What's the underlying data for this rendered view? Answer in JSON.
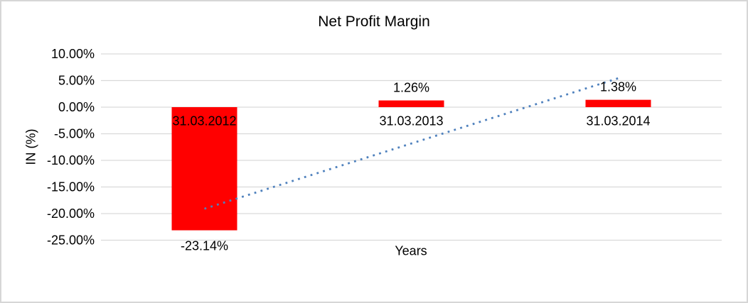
{
  "chart_data": {
    "type": "bar",
    "title": "Net Profit Margin",
    "xlabel": "Years",
    "ylabel": "IN (%)",
    "categories": [
      "31.03.2012",
      "31.03.2013",
      "31.03.2014"
    ],
    "values": [
      -23.14,
      1.26,
      1.38
    ],
    "data_labels": [
      "-23.14%",
      "1.26%",
      "1.38%"
    ],
    "ylim": [
      -25,
      10
    ],
    "yticks": [
      10,
      5,
      0,
      -5,
      -10,
      -15,
      -20,
      -25
    ],
    "ytick_labels": [
      "10.00%",
      "5.00%",
      "0.00%",
      "-5.00%",
      "-10.00%",
      "-15.00%",
      "-20.00%",
      "-25.00%"
    ],
    "grid": true,
    "legend": false,
    "bar_color": "#ff0000",
    "gridline_color": "#d9d9d9",
    "text_color": "#000000",
    "trendline": {
      "type": "linear",
      "style": "dotted",
      "color": "#4f81bd",
      "start": {
        "category_index": 0,
        "value": -19.09
      },
      "end": {
        "category_index": 2,
        "value": 5.43
      }
    }
  }
}
